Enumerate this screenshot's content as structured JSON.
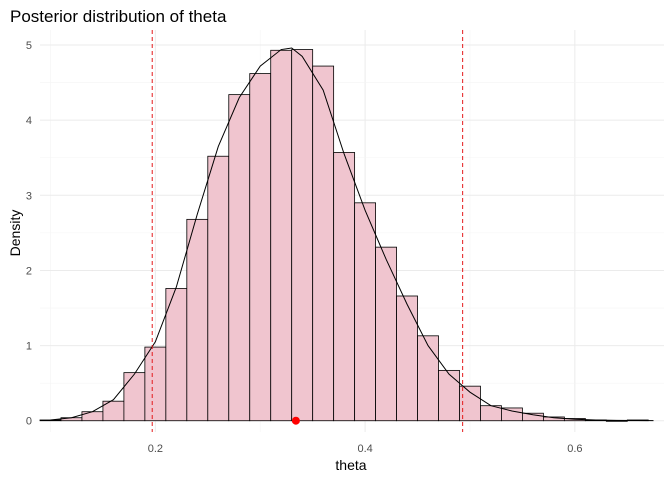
{
  "chart_data": {
    "type": "histogram",
    "title": "Posterior distribution of theta",
    "xlabel": "theta",
    "ylabel": "Density",
    "xlim": [
      0.09,
      0.685
    ],
    "ylim": [
      -0.15,
      5.2
    ],
    "x_ticks": [
      0.2,
      0.4,
      0.6
    ],
    "x_tick_labels": [
      "0.2",
      "0.4",
      "0.6"
    ],
    "y_ticks": [
      0,
      1,
      2,
      3,
      4,
      5
    ],
    "y_tick_labels": [
      "0",
      "1",
      "2",
      "3",
      "4",
      "5"
    ],
    "grid": true,
    "bin_width": 0.02,
    "bins": [
      {
        "x0": 0.09,
        "x1": 0.11,
        "density": 0.01
      },
      {
        "x0": 0.11,
        "x1": 0.13,
        "density": 0.04
      },
      {
        "x0": 0.13,
        "x1": 0.15,
        "density": 0.12
      },
      {
        "x0": 0.15,
        "x1": 0.17,
        "density": 0.26
      },
      {
        "x0": 0.17,
        "x1": 0.19,
        "density": 0.64
      },
      {
        "x0": 0.19,
        "x1": 0.21,
        "density": 0.98
      },
      {
        "x0": 0.21,
        "x1": 0.23,
        "density": 1.76
      },
      {
        "x0": 0.23,
        "x1": 0.25,
        "density": 2.68
      },
      {
        "x0": 0.25,
        "x1": 0.27,
        "density": 3.52
      },
      {
        "x0": 0.27,
        "x1": 0.29,
        "density": 4.34
      },
      {
        "x0": 0.29,
        "x1": 0.31,
        "density": 4.62
      },
      {
        "x0": 0.31,
        "x1": 0.33,
        "density": 4.93
      },
      {
        "x0": 0.33,
        "x1": 0.35,
        "density": 4.94
      },
      {
        "x0": 0.35,
        "x1": 0.37,
        "density": 4.72
      },
      {
        "x0": 0.37,
        "x1": 0.39,
        "density": 3.57
      },
      {
        "x0": 0.39,
        "x1": 0.41,
        "density": 2.9
      },
      {
        "x0": 0.41,
        "x1": 0.43,
        "density": 2.31
      },
      {
        "x0": 0.43,
        "x1": 0.45,
        "density": 1.66
      },
      {
        "x0": 0.45,
        "x1": 0.47,
        "density": 1.13
      },
      {
        "x0": 0.47,
        "x1": 0.49,
        "density": 0.67
      },
      {
        "x0": 0.49,
        "x1": 0.51,
        "density": 0.46
      },
      {
        "x0": 0.51,
        "x1": 0.53,
        "density": 0.2
      },
      {
        "x0": 0.53,
        "x1": 0.55,
        "density": 0.17
      },
      {
        "x0": 0.55,
        "x1": 0.57,
        "density": 0.1
      },
      {
        "x0": 0.57,
        "x1": 0.59,
        "density": 0.05
      },
      {
        "x0": 0.59,
        "x1": 0.61,
        "density": 0.03
      },
      {
        "x0": 0.61,
        "x1": 0.63,
        "density": 0.01
      },
      {
        "x0": 0.63,
        "x1": 0.65,
        "density": 0.0
      },
      {
        "x0": 0.65,
        "x1": 0.67,
        "density": 0.01
      }
    ],
    "density_curve": {
      "x": [
        0.1,
        0.12,
        0.14,
        0.16,
        0.18,
        0.2,
        0.22,
        0.24,
        0.26,
        0.28,
        0.3,
        0.32,
        0.33,
        0.34,
        0.36,
        0.38,
        0.4,
        0.42,
        0.44,
        0.46,
        0.48,
        0.5,
        0.52,
        0.54,
        0.56,
        0.58,
        0.6,
        0.62,
        0.64,
        0.66,
        0.675
      ],
      "y": [
        0.01,
        0.04,
        0.12,
        0.28,
        0.62,
        1.05,
        1.78,
        2.75,
        3.65,
        4.3,
        4.72,
        4.94,
        4.96,
        4.85,
        4.4,
        3.55,
        2.8,
        2.15,
        1.55,
        1.0,
        0.62,
        0.38,
        0.2,
        0.13,
        0.08,
        0.04,
        0.02,
        0.01,
        0.005,
        0.003,
        0.002
      ]
    },
    "interval_lines": [
      0.197,
      0.493
    ],
    "point_estimate": {
      "x": 0.334,
      "y": 0
    },
    "colors": {
      "bar_fill": "#f0c5cf",
      "bar_stroke": "#000000",
      "curve": "#000000",
      "interval_line": "#e41a1c",
      "point": "#ff0000"
    }
  }
}
